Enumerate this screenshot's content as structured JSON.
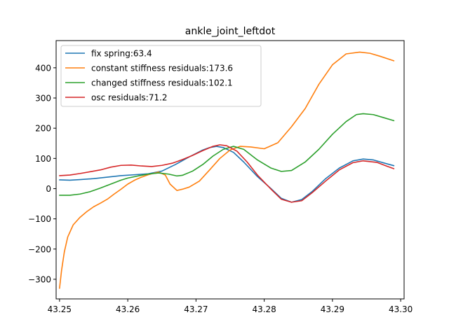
{
  "chart_data": {
    "type": "line",
    "title": "ankle_joint_leftdot",
    "xlabel": "",
    "ylabel": "",
    "xlim": [
      43.2495,
      43.3005
    ],
    "ylim": [
      -365,
      490
    ],
    "xticks": [
      43.25,
      43.26,
      43.27,
      43.28,
      43.29,
      43.3
    ],
    "xtick_labels": [
      "43.25",
      "43.26",
      "43.27",
      "43.28",
      "43.29",
      "43.30"
    ],
    "yticks": [
      -300,
      -200,
      -100,
      0,
      100,
      200,
      300,
      400
    ],
    "ytick_labels": [
      "−300",
      "−200",
      "−100",
      "0",
      "100",
      "200",
      "300",
      "400"
    ],
    "grid": false,
    "legend_position": "top-left",
    "series": [
      {
        "name": "fix spring:63.4",
        "color": "#1f77b4",
        "points": [
          [
            43.25,
            29
          ],
          [
            43.2515,
            28
          ],
          [
            43.253,
            30
          ],
          [
            43.255,
            33
          ],
          [
            43.257,
            38
          ],
          [
            43.259,
            43
          ],
          [
            43.261,
            46
          ],
          [
            43.263,
            49
          ],
          [
            43.265,
            58
          ],
          [
            43.267,
            80
          ],
          [
            43.269,
            105
          ],
          [
            43.271,
            128
          ],
          [
            43.272,
            136
          ],
          [
            43.273,
            140
          ],
          [
            43.274,
            136
          ],
          [
            43.2755,
            120
          ],
          [
            43.277,
            88
          ],
          [
            43.279,
            40
          ],
          [
            43.281,
            0
          ],
          [
            43.2825,
            -32
          ],
          [
            43.284,
            -45
          ],
          [
            43.2855,
            -36
          ],
          [
            43.287,
            -10
          ],
          [
            43.289,
            33
          ],
          [
            43.291,
            68
          ],
          [
            43.293,
            92
          ],
          [
            43.2945,
            98
          ],
          [
            43.296,
            95
          ],
          [
            43.298,
            82
          ],
          [
            43.299,
            76
          ]
        ]
      },
      {
        "name": "constant stiffness residuals:173.6",
        "color": "#ff7f0e",
        "points": [
          [
            43.25,
            -330
          ],
          [
            43.2503,
            -270
          ],
          [
            43.2507,
            -210
          ],
          [
            43.2512,
            -160
          ],
          [
            43.252,
            -120
          ],
          [
            43.253,
            -95
          ],
          [
            43.254,
            -76
          ],
          [
            43.255,
            -60
          ],
          [
            43.256,
            -48
          ],
          [
            43.257,
            -35
          ],
          [
            43.258,
            -18
          ],
          [
            43.259,
            -2
          ],
          [
            43.26,
            15
          ],
          [
            43.261,
            28
          ],
          [
            43.262,
            38
          ],
          [
            43.263,
            46
          ],
          [
            43.2645,
            55
          ],
          [
            43.2655,
            45
          ],
          [
            43.2662,
            15
          ],
          [
            43.2672,
            -6
          ],
          [
            43.268,
            -2
          ],
          [
            43.269,
            5
          ],
          [
            43.2705,
            25
          ],
          [
            43.272,
            62
          ],
          [
            43.2735,
            100
          ],
          [
            43.275,
            128
          ],
          [
            43.2765,
            140
          ],
          [
            43.278,
            138
          ],
          [
            43.28,
            132
          ],
          [
            43.282,
            152
          ],
          [
            43.284,
            205
          ],
          [
            43.286,
            265
          ],
          [
            43.288,
            345
          ],
          [
            43.29,
            410
          ],
          [
            43.292,
            446
          ],
          [
            43.294,
            452
          ],
          [
            43.2955,
            448
          ],
          [
            43.297,
            438
          ],
          [
            43.299,
            423
          ]
        ]
      },
      {
        "name": "changed stiffness residuals:102.1",
        "color": "#2ca02c",
        "points": [
          [
            43.25,
            -22
          ],
          [
            43.2515,
            -22
          ],
          [
            43.253,
            -18
          ],
          [
            43.2545,
            -10
          ],
          [
            43.256,
            2
          ],
          [
            43.2575,
            15
          ],
          [
            43.259,
            28
          ],
          [
            43.26,
            35
          ],
          [
            43.2615,
            42
          ],
          [
            43.263,
            48
          ],
          [
            43.2645,
            52
          ],
          [
            43.266,
            48
          ],
          [
            43.2672,
            42
          ],
          [
            43.268,
            44
          ],
          [
            43.2695,
            58
          ],
          [
            43.271,
            80
          ],
          [
            43.2725,
            108
          ],
          [
            43.274,
            130
          ],
          [
            43.2755,
            140
          ],
          [
            43.277,
            130
          ],
          [
            43.279,
            95
          ],
          [
            43.281,
            68
          ],
          [
            43.2825,
            57
          ],
          [
            43.284,
            60
          ],
          [
            43.286,
            88
          ],
          [
            43.288,
            130
          ],
          [
            43.29,
            180
          ],
          [
            43.292,
            222
          ],
          [
            43.2935,
            245
          ],
          [
            43.2945,
            248
          ],
          [
            43.296,
            245
          ],
          [
            43.2975,
            235
          ],
          [
            43.299,
            225
          ]
        ]
      },
      {
        "name": "osc residuals:71.2",
        "color": "#d62728",
        "points": [
          [
            43.25,
            43
          ],
          [
            43.2515,
            45
          ],
          [
            43.253,
            50
          ],
          [
            43.2545,
            56
          ],
          [
            43.256,
            62
          ],
          [
            43.2575,
            71
          ],
          [
            43.259,
            77
          ],
          [
            43.2605,
            78
          ],
          [
            43.262,
            75
          ],
          [
            43.2635,
            73
          ],
          [
            43.265,
            77
          ],
          [
            43.2665,
            84
          ],
          [
            43.268,
            96
          ],
          [
            43.2695,
            110
          ],
          [
            43.271,
            126
          ],
          [
            43.2725,
            140
          ],
          [
            43.2735,
            145
          ],
          [
            43.2745,
            142
          ],
          [
            43.276,
            124
          ],
          [
            43.2775,
            88
          ],
          [
            43.279,
            45
          ],
          [
            43.281,
            -2
          ],
          [
            43.2825,
            -35
          ],
          [
            43.284,
            -45
          ],
          [
            43.2855,
            -40
          ],
          [
            43.287,
            -14
          ],
          [
            43.289,
            25
          ],
          [
            43.291,
            62
          ],
          [
            43.293,
            86
          ],
          [
            43.2945,
            92
          ],
          [
            43.2965,
            87
          ],
          [
            43.298,
            74
          ],
          [
            43.299,
            66
          ]
        ]
      }
    ]
  }
}
